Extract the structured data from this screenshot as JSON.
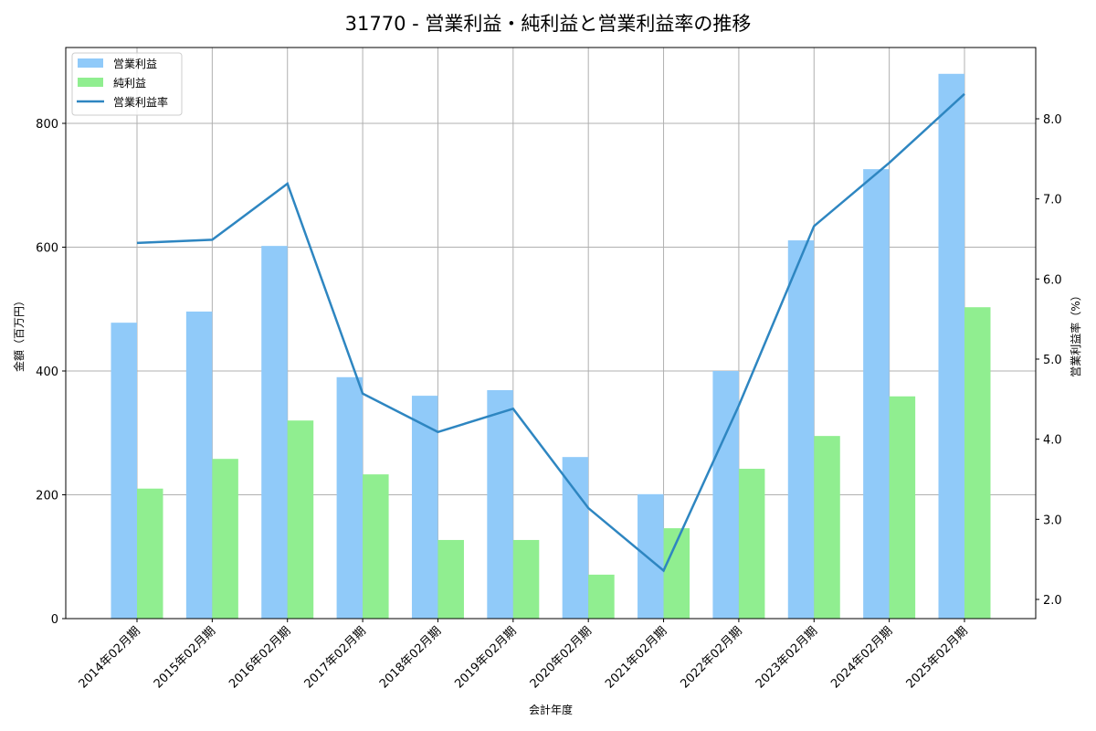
{
  "chart_data": {
    "type": "bar",
    "title": "31770 - 営業利益・純利益と営業利益率の推移",
    "xlabel": "会計年度",
    "ylabel": "金額（百万円）",
    "y2label": "営業利益率（%）",
    "ylim": [
      0,
      920
    ],
    "y2lim": [
      1.75,
      8.9
    ],
    "yticks": [
      0,
      200,
      400,
      600,
      800
    ],
    "y2ticks": [
      "2.0",
      "3.0",
      "4.0",
      "5.0",
      "6.0",
      "7.0",
      "8.0"
    ],
    "grid": true,
    "legend_position": "upper left",
    "categories": [
      "2014年02月期",
      "2015年02月期",
      "2016年02月期",
      "2017年02月期",
      "2018年02月期",
      "2019年02月期",
      "2020年02月期",
      "2021年02月期",
      "2022年02月期",
      "2023年02月期",
      "2024年02月期",
      "2025年02月期"
    ],
    "series": [
      {
        "name": "営業利益",
        "type": "bar",
        "axis": "left",
        "color": "#90CAF9",
        "values": [
          478,
          496,
          602,
          390,
          360,
          369,
          261,
          201,
          400,
          611,
          726,
          880
        ]
      },
      {
        "name": "純利益",
        "type": "bar",
        "axis": "left",
        "color": "#90EE90",
        "values": [
          210,
          258,
          320,
          233,
          127,
          127,
          71,
          146,
          242,
          295,
          359,
          503
        ]
      },
      {
        "name": "営業利益率",
        "type": "line",
        "axis": "right",
        "color": "#2E86C1",
        "values": [
          6.45,
          6.49,
          7.19,
          4.57,
          4.09,
          4.38,
          3.14,
          2.36,
          4.42,
          6.66,
          7.45,
          8.31
        ]
      }
    ]
  }
}
